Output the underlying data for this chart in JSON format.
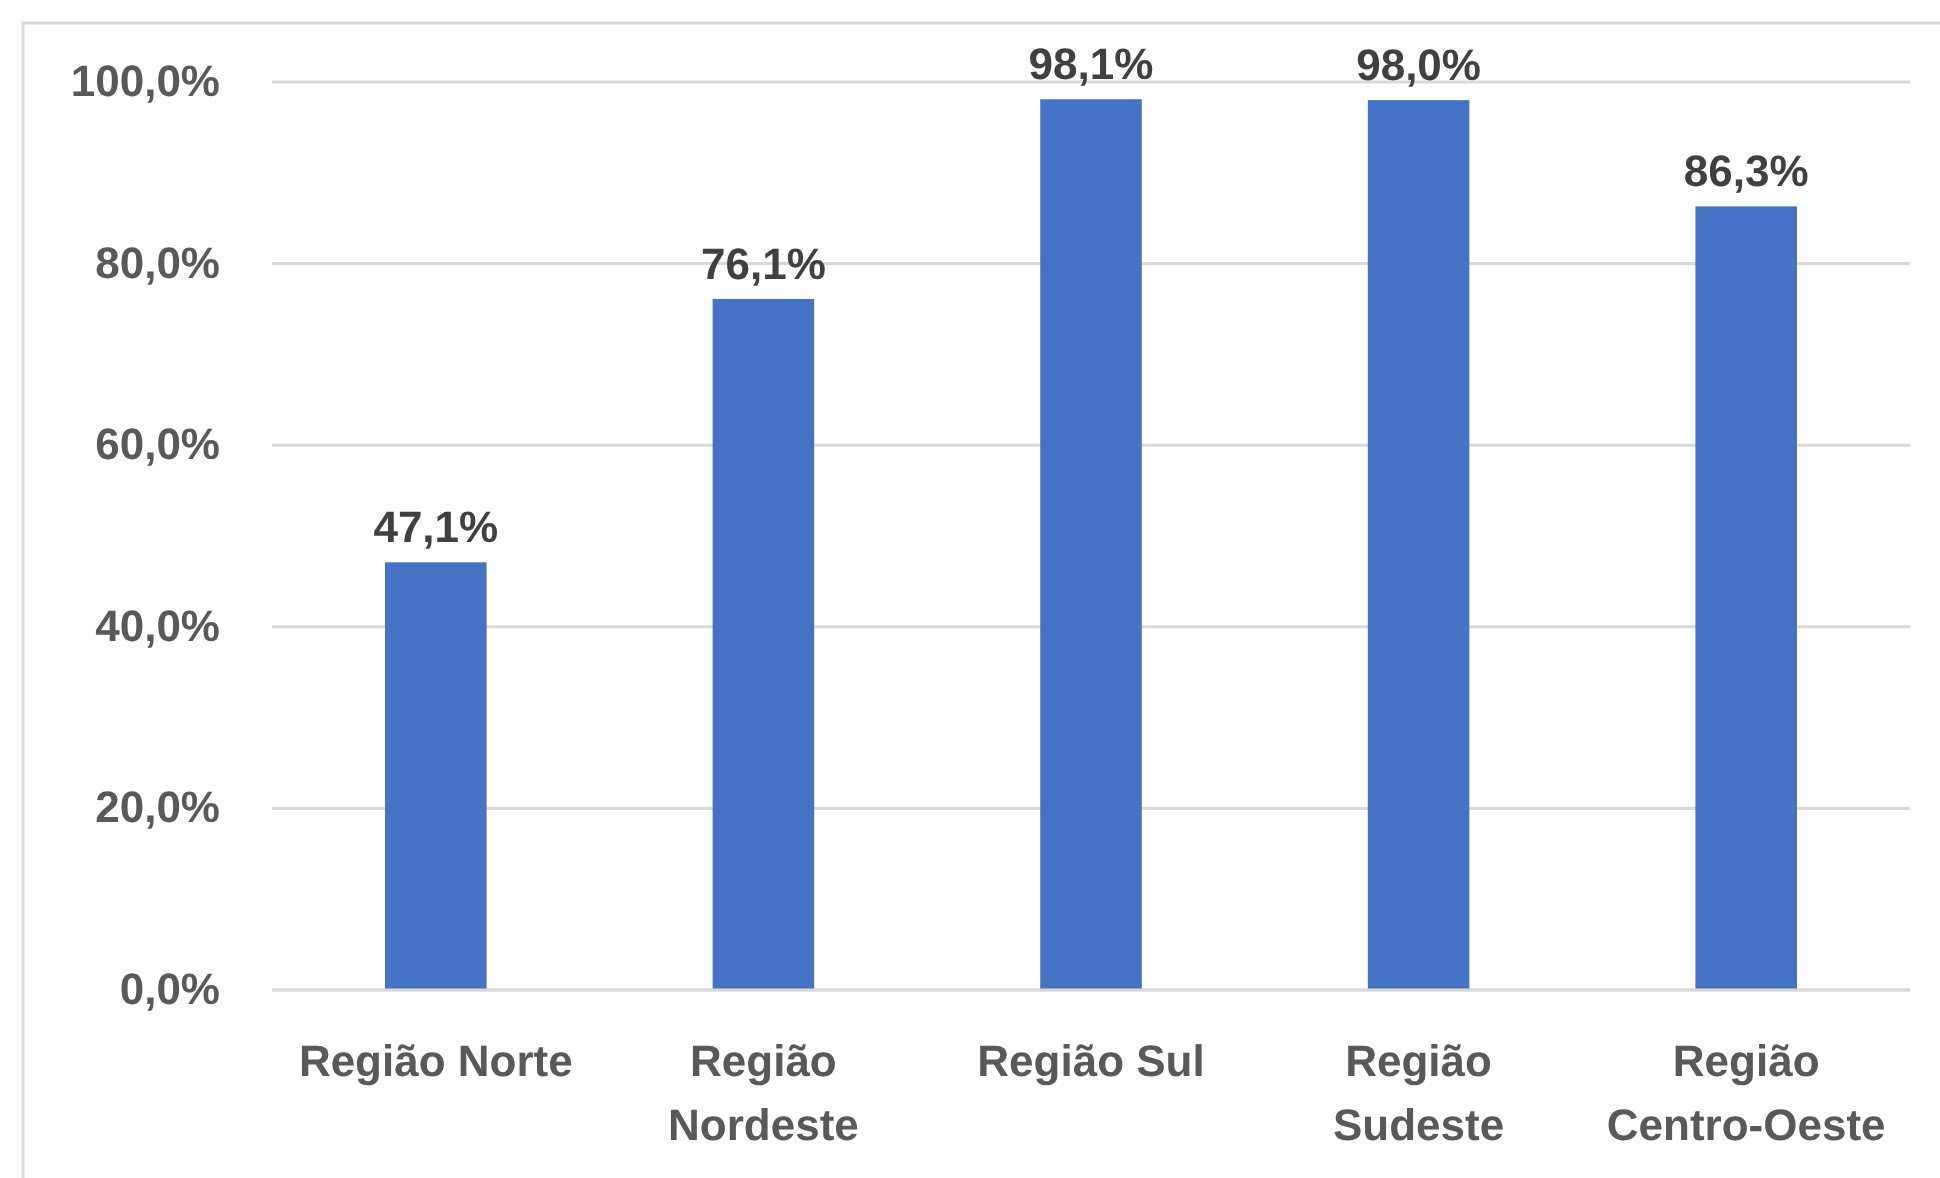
{
  "chart_data": {
    "type": "bar",
    "categories": [
      "Região Norte",
      "Região Nordeste",
      "Região Sul",
      "Região Sudeste",
      "Região Centro-Oeste"
    ],
    "values": [
      47.1,
      76.1,
      98.1,
      98.0,
      86.3
    ],
    "color": "#4472c4",
    "value_labels": [
      "47,1%",
      "76,1%",
      "98,1%",
      "98,0%",
      "86,3%"
    ],
    "ylim": [
      0,
      100
    ],
    "yticks": [
      {
        "value": 0,
        "label": "0,0%"
      },
      {
        "value": 20,
        "label": "20,0%"
      },
      {
        "value": 40,
        "label": "40,0%"
      },
      {
        "value": 60,
        "label": "60,0%"
      },
      {
        "value": 80,
        "label": "80,0%"
      },
      {
        "value": 100,
        "label": "100,0%"
      }
    ],
    "grid": "y"
  }
}
